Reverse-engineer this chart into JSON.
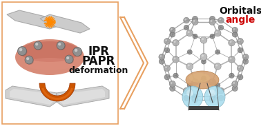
{
  "background_color": "#ffffff",
  "border_color": "#e8a060",
  "arrow_color": "#e8a060",
  "text_ipr": "IPR",
  "text_papr": "PAPR",
  "text_deformation": "deformation",
  "text_orbitals": "Orbitals",
  "text_angle": "angle",
  "text_color_main": "#111111",
  "text_color_angle": "#cc0000",
  "hex_color": "#cccccc",
  "hex_edge": "#aaaaaa",
  "spark_color": "#ff8800",
  "orbital_pink": "#d4806a",
  "orbital_ball": "#888888",
  "bow_color": "#cccccc",
  "bow_orange": "#cc5500",
  "c60_ball_color": "#909090",
  "c60_ball_edge": "#505050",
  "c60_bond_color": "#707070",
  "c60_orbital_blue": "#aaddee",
  "c60_orbital_orange": "#d4a070",
  "c60_bar_color": "#404040",
  "figsize": [
    3.78,
    1.83
  ],
  "dpi": 100
}
